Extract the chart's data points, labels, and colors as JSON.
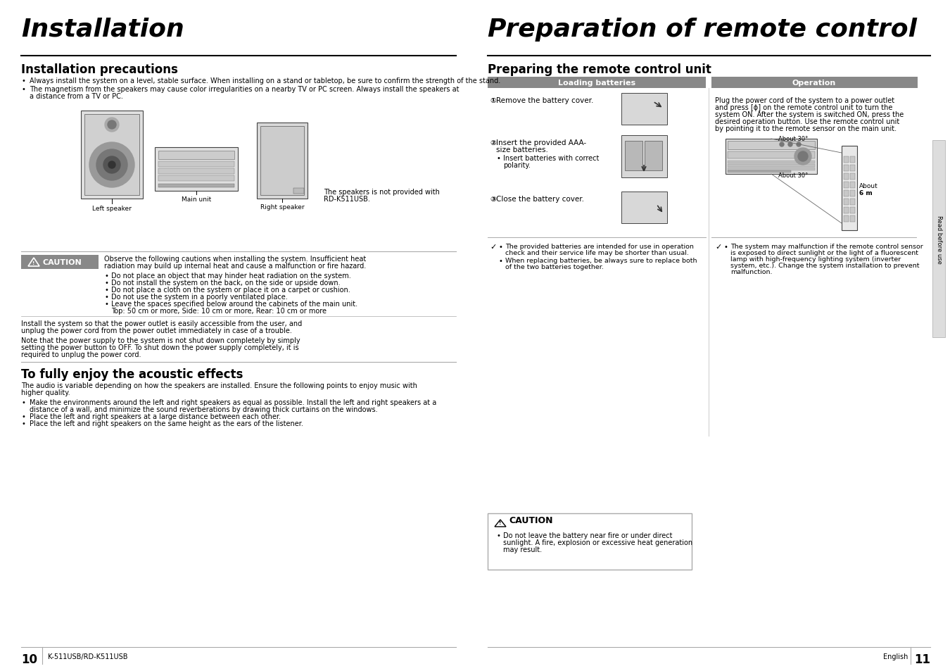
{
  "bg_color": "#ffffff",
  "left_title": "Installation",
  "right_title": "Preparation of remote control",
  "left_section1_title": "Installation precautions",
  "left_bullet1": "Always install the system on a level, stable surface. When installing on a stand or tabletop, be sure to confirm the strength of the stand.",
  "left_bullet2_l1": "The magnetism from the speakers may cause color irregularities on a nearby TV or PC screen. Always install the speakers at",
  "left_bullet2_l2": "a distance from a TV or PC.",
  "speaker_note_l1": "The speakers is not provided with",
  "speaker_note_l2": "RD-K511USB.",
  "label_left_speaker": "Left speaker",
  "label_main_unit": "Main unit",
  "label_right_speaker": "Right speaker",
  "caution_title": "CAUTION",
  "caution_text_l1": "Observe the following cautions when installing the system. Insufficient heat",
  "caution_text_l2": "radiation may build up internal heat and cause a malfunction or fire hazard.",
  "caution_bullets": [
    "Do not place an object that may hinder heat radiation on the system.",
    "Do not install the system on the back, on the side or upside down.",
    "Do not place a cloth on the system or place it on a carpet or cushion.",
    "Do not use the system in a poorly ventilated place.",
    "Leave the spaces specified below around the cabinets of the main unit.",
    "    Top: 50 cm or more, Side: 10 cm or more, Rear: 10 cm or more"
  ],
  "caution_para1_l1": "Install the system so that the power outlet is easily accessible from the user, and",
  "caution_para1_l2": "unplug the power cord from the power outlet immediately in case of a trouble.",
  "caution_para2_l1": "Note that the power supply to the system is not shut down completely by simply",
  "caution_para2_l2": "setting the power button to OFF. To shut down the power supply completely, it is",
  "caution_para2_l3": "required to unplug the power cord.",
  "acoustic_title": "To fully enjoy the acoustic effects",
  "acoustic_intro_l1": "The audio is variable depending on how the speakers are installed. Ensure the following points to enjoy music with",
  "acoustic_intro_l2": "higher quality.",
  "acoustic_bullets": [
    "Make the environments around the left and right speakers as equal as possible. Install the left and right speakers at a",
    "    distance of a wall, and minimize the sound reverberations by drawing thick curtains on the windows.",
    "Place the left and right speakers at a large distance between each other.",
    "Place the left and right speakers on the same height as the ears of the listener."
  ],
  "right_section1_title": "Preparing the remote control unit",
  "loading_title": "Loading batteries",
  "operation_title": "Operation",
  "step1_bold": "①",
  "step1_text": "Remove the battery cover.",
  "step2_bold": "②",
  "step2_l1": "Insert the provided AAA-",
  "step2_l2": "size batteries.",
  "step2_bullet": "Insert batteries with correct",
  "step2_bullet2": "polarity.",
  "step3_bold": "③",
  "step3_text": "Close the battery cover.",
  "battery_note_l1": "The provided batteries are intended for use in operation",
  "battery_note_l2": "check and their service life may be shorter than usual.",
  "battery_note_l3": "When replacing batteries, be always sure to replace both",
  "battery_note_l4": "of the two batteries together.",
  "operation_text_l1": "Plug the power cord of the system to a power outlet",
  "operation_text_l2": "and press [ɸ] on the remote control unit to turn the",
  "operation_text_l3": "system ON. After the system is switched ON, press the",
  "operation_text_l4": "desired operation button. Use the remote control unit",
  "operation_text_l5": "by pointing it to the remote sensor on the main unit.",
  "about_6m_l1": "About",
  "about_6m_l2": "6 m",
  "about_30_1": "About 30°",
  "about_30_2": "About 30°",
  "operation_note_l1": "The system may malfunction if the remote control sensor",
  "operation_note_l2": "is exposed to direct sunlight or the light of a fluorescent",
  "operation_note_l3": "lamp with high-frequency lighting system (inverter",
  "operation_note_l4": "system, etc.). Change the system installation to prevent",
  "operation_note_l5": "malfunction.",
  "right_caution_title": "CAUTION",
  "rc_bullet_l1": "Do not leave the battery near fire or under direct",
  "rc_bullet_l2": "sunlight. A fire, explosion or excessive heat generation",
  "rc_bullet_l3": "may result.",
  "page_left": "10",
  "page_left_label": "K-511USB/RD-K511USB",
  "page_right": "11",
  "page_right_label": "English",
  "sidebar_text": "Read before use",
  "title_fontsize": 26,
  "section_fontsize": 12,
  "body_fontsize": 7.5,
  "small_fontsize": 7.0,
  "header_color": "#999999",
  "loading_header_color": "#666666",
  "caution_bg": "#888888"
}
